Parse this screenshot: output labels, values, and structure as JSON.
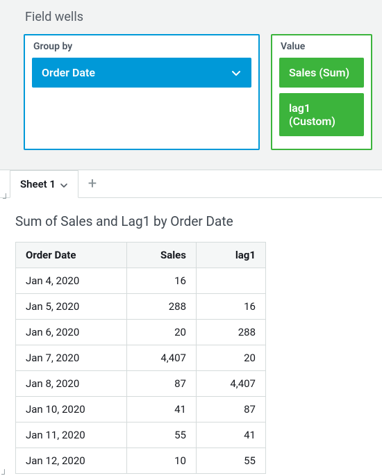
{
  "fieldWells": {
    "title": "Field wells",
    "groupBy": {
      "label": "Group by",
      "borderColor": "#0099d8",
      "pills": [
        {
          "label": "Order Date",
          "color": "#0099d8"
        }
      ]
    },
    "value": {
      "label": "Value",
      "borderColor": "#3cb43c",
      "pills": [
        {
          "label": "Sales (Sum)",
          "color": "#3cb43c"
        },
        {
          "label": "lag1 (Custom)",
          "color": "#3cb43c"
        }
      ]
    }
  },
  "sheets": {
    "active": "Sheet 1",
    "addGlyph": "+"
  },
  "visual": {
    "title": "Sum of Sales and Lag1 by Order Date",
    "columns": {
      "date": "Order Date",
      "sales": "Sales",
      "lag": "lag1"
    },
    "rows": [
      {
        "date": "Jan 4, 2020",
        "sales": "16",
        "lag": ""
      },
      {
        "date": "Jan 5, 2020",
        "sales": "288",
        "lag": "16"
      },
      {
        "date": "Jan 6, 2020",
        "sales": "20",
        "lag": "288"
      },
      {
        "date": "Jan 7, 2020",
        "sales": "4,407",
        "lag": "20"
      },
      {
        "date": "Jan 8, 2020",
        "sales": "87",
        "lag": "4,407"
      },
      {
        "date": "Jan 10, 2020",
        "sales": "41",
        "lag": "87"
      },
      {
        "date": "Jan 11, 2020",
        "sales": "55",
        "lag": "41"
      },
      {
        "date": "Jan 12, 2020",
        "sales": "10",
        "lag": "55"
      }
    ]
  },
  "colors": {
    "panelBg": "#f2f3f3",
    "border": "#d5dbdb",
    "blue": "#0099d8",
    "green": "#3cb43c",
    "textMuted": "#545b64"
  }
}
